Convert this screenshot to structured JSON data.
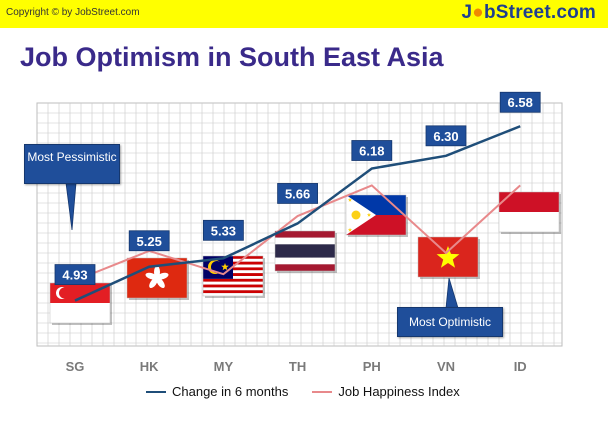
{
  "header": {
    "copyright": "Copyright © by JobStreet.com",
    "brand_prefix": "J",
    "brand_star": "●",
    "brand_suffix": "bStreet.com"
  },
  "title": "Job Optimism in South East Asia",
  "callouts": {
    "pessimistic": "Most Pessimistic",
    "optimistic": "Most Optimistic"
  },
  "colors": {
    "brand": "#1f3f8f",
    "yellow": "#ffff00",
    "title": "#3a2a8a",
    "series_change": "#1f4e79",
    "series_happiness": "#e8898b",
    "label_bg": "#1f4e9a",
    "grid": "#c8c8c8"
  },
  "chart_data": {
    "type": "line",
    "categories": [
      "SG",
      "HK",
      "MY",
      "TH",
      "PH",
      "VN",
      "ID"
    ],
    "ylim": [
      4.5,
      6.8
    ],
    "grid": true,
    "legend_position": "bottom",
    "series": [
      {
        "name": "Change in 6 months",
        "values": [
          4.93,
          5.25,
          5.33,
          5.66,
          6.18,
          6.3,
          6.58
        ],
        "data_labels": [
          "4.93",
          "5.25",
          "5.33",
          "5.66",
          "6.18",
          "6.30",
          "6.58"
        ]
      },
      {
        "name": "Job Happiness Index",
        "values": [
          5.12,
          5.4,
          5.18,
          5.73,
          6.02,
          5.38,
          6.02
        ]
      }
    ],
    "flags": [
      {
        "category": "SG",
        "icon": "flag-singapore-icon"
      },
      {
        "category": "HK",
        "icon": "flag-hongkong-icon"
      },
      {
        "category": "MY",
        "icon": "flag-malaysia-icon"
      },
      {
        "category": "TH",
        "icon": "flag-thailand-icon"
      },
      {
        "category": "PH",
        "icon": "flag-philippines-icon"
      },
      {
        "category": "VN",
        "icon": "flag-vietnam-icon"
      },
      {
        "category": "ID",
        "icon": "flag-indonesia-icon"
      }
    ]
  }
}
